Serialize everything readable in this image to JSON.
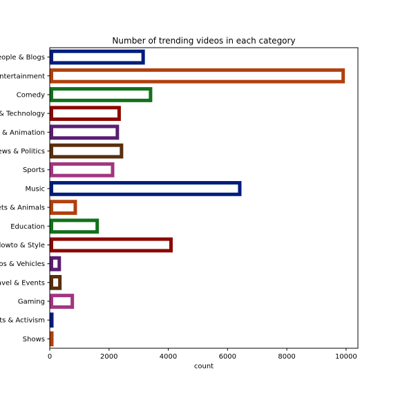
{
  "chart_data": {
    "type": "bar",
    "orientation": "horizontal",
    "title": "Number of trending videos in each category",
    "xlabel": "count",
    "ylabel": "",
    "xlim": [
      0,
      10400
    ],
    "xticks": [
      0,
      2000,
      4000,
      6000,
      8000,
      10000
    ],
    "xtick_labels": [
      "0",
      "2000",
      "4000",
      "6000",
      "8000",
      "10000"
    ],
    "grid": false,
    "categories": [
      "eople & Blogs",
      "ntertainment",
      "Comedy",
      "& Technology",
      "& Animation",
      "ews & Politics",
      "Sports",
      "Music",
      "ets & Animals",
      "Education",
      "lowto & Style",
      "os & Vehicles",
      "avel & Events",
      "Gaming",
      "ts & Activism",
      "Shows"
    ],
    "values": [
      3210,
      9960,
      3460,
      2400,
      2340,
      2480,
      2180,
      6470,
      920,
      1660,
      4150,
      380,
      400,
      820,
      60,
      60
    ],
    "colors": [
      "#001c7f",
      "#b1400d",
      "#12711c",
      "#8c0800",
      "#591e71",
      "#592f0d",
      "#a23582",
      "#001c7f",
      "#b1400d",
      "#12711c",
      "#8c0800",
      "#591e71",
      "#592f0d",
      "#a23582",
      "#001c7f",
      "#b1400d"
    ]
  }
}
